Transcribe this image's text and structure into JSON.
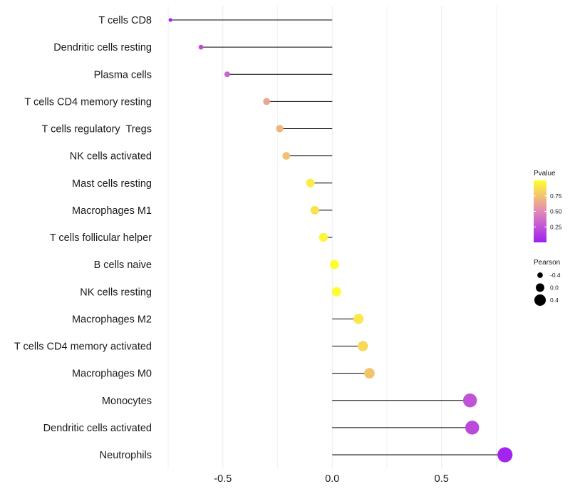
{
  "chart_data": {
    "type": "lollipop",
    "categories": [
      "T cells CD8",
      "Dendritic cells resting",
      "Plasma cells",
      "T cells CD4 memory resting",
      "T cells regulatory  Tregs",
      "NK cells activated",
      "Mast cells resting",
      "Macrophages M1",
      "T cells follicular helper",
      "B cells naive",
      "NK cells resting",
      "Macrophages M2",
      "T cells CD4 memory activated",
      "Macrophages M0",
      "Monocytes",
      "Dendritic cells activated",
      "Neutrophils"
    ],
    "pearson": [
      -0.74,
      -0.6,
      -0.48,
      -0.3,
      -0.24,
      -0.21,
      -0.1,
      -0.08,
      -0.04,
      0.01,
      0.02,
      0.12,
      0.14,
      0.17,
      0.63,
      0.64,
      0.79
    ],
    "pvalue": [
      0.03,
      0.2,
      0.32,
      0.62,
      0.7,
      0.74,
      0.92,
      0.88,
      0.96,
      0.99,
      0.99,
      0.9,
      0.84,
      0.76,
      0.24,
      0.2,
      0.02
    ],
    "xlim": [
      -0.76,
      0.82
    ],
    "x_ticks": [
      -0.5,
      0.0,
      0.5
    ],
    "x_tick_labels": [
      "-0.5",
      "0.0",
      "0.5"
    ],
    "legend_color": {
      "title": "Pvalue",
      "range": [
        0,
        1
      ],
      "ticks": [
        0.75,
        0.5,
        0.25
      ],
      "tick_labels": [
        "0.75",
        "0.50",
        "0.25"
      ],
      "low_color": "#a020f0",
      "high_color": "#ffff00"
    },
    "legend_size": {
      "title": "Pearson",
      "values": [
        -0.4,
        0.0,
        0.4
      ],
      "labels": [
        "-0.4",
        "0.0",
        "0.4"
      ]
    },
    "grid": true,
    "segment_color": "#000000"
  }
}
